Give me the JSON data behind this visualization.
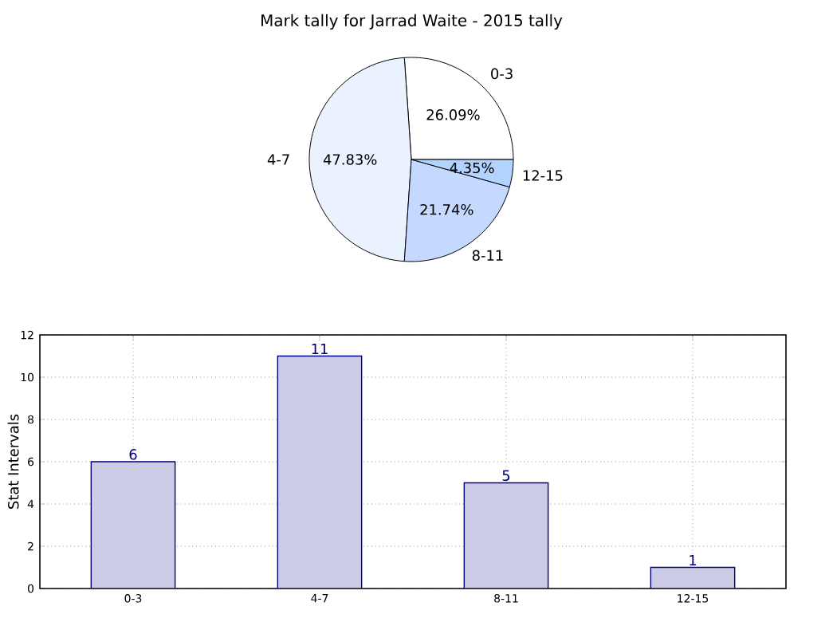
{
  "chart_data": [
    {
      "type": "pie",
      "title": "Mark tally for Jarrad Waite - 2015 tally",
      "categories": [
        "0-3",
        "4-7",
        "8-11",
        "12-15"
      ],
      "values": [
        26.09,
        47.83,
        21.74,
        4.35
      ],
      "value_labels": [
        "26.09%",
        "47.83%",
        "21.74%",
        "4.35%"
      ],
      "colors": [
        "#ffffff",
        "#eaf1ff",
        "#c5d9ff",
        "#b3d3ff"
      ]
    },
    {
      "type": "bar",
      "ylabel": "Stat Intervals",
      "categories": [
        "0-3",
        "4-7",
        "8-11",
        "12-15"
      ],
      "values": [
        6,
        11,
        5,
        1
      ],
      "color": "#cccce6",
      "ylim": [
        0,
        12
      ],
      "yticks": [
        0,
        2,
        4,
        6,
        8,
        10,
        12
      ],
      "grid": true,
      "data_labels": true
    }
  ]
}
